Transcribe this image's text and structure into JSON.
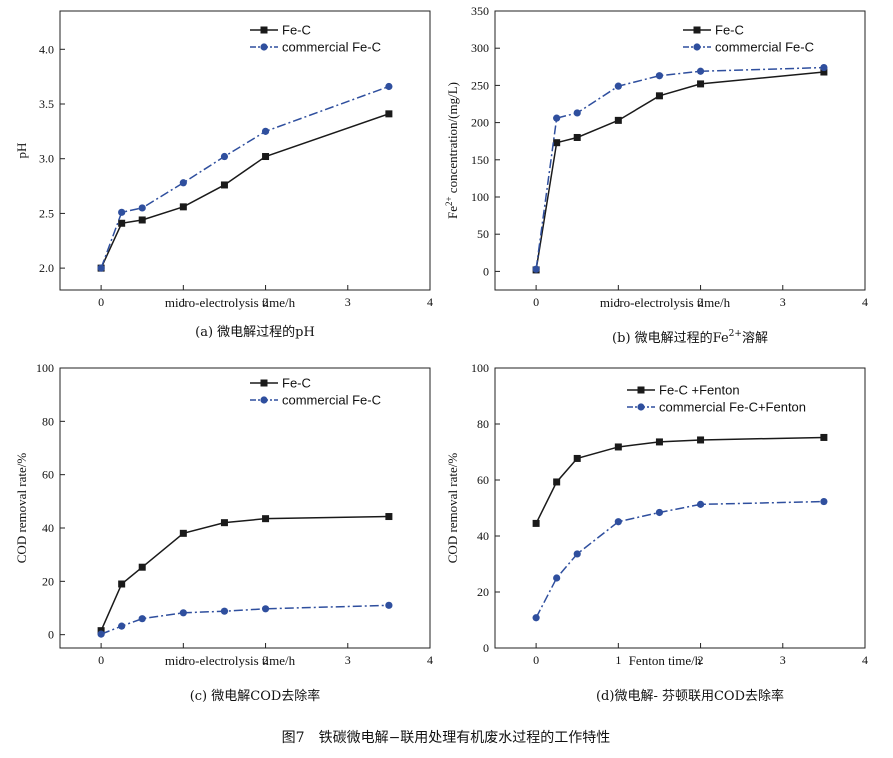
{
  "figure_caption": "图7　铁碳微电解−联用处理有机废水过程的工作特性",
  "colors": {
    "fe_c": "#1a1a1a",
    "commercial": "#2f4f9e"
  },
  "chart_data": [
    {
      "type": "line",
      "id": "a",
      "caption": "(a) 微电解过程的pH",
      "xlabel": "micro-electrolysis time/h",
      "ylabel": "pH",
      "xlim": [
        -0.5,
        4
      ],
      "ylim": [
        1.8,
        4.35
      ],
      "xticks": [
        0,
        1,
        2,
        3,
        4
      ],
      "yticks": [
        2.0,
        2.5,
        3.0,
        3.5,
        4.0
      ],
      "ytick_labels": [
        "2.0",
        "2.5",
        "3.0",
        "3.5",
        "4.0"
      ],
      "x": [
        0,
        0.25,
        0.5,
        1,
        1.5,
        2,
        3.5
      ],
      "series": [
        {
          "name": "Fe-C",
          "marker": "square",
          "dash": "solid",
          "values": [
            2.0,
            2.41,
            2.44,
            2.56,
            2.76,
            3.02,
            3.41
          ]
        },
        {
          "name": "commercial Fe-C",
          "marker": "circle",
          "dash": "dashdot",
          "values": [
            2.0,
            2.51,
            2.55,
            2.78,
            3.02,
            3.25,
            3.66
          ]
        }
      ]
    },
    {
      "type": "line",
      "id": "b",
      "caption_prefix": "(b) 微电解过程的Fe",
      "caption_sup": "2+",
      "caption_suffix": "溶解",
      "xlabel": "micro-electrolysis time/h",
      "ylabel_prefix": "Fe",
      "ylabel_sup": "2+",
      "ylabel_suffix": " concentration/(mg/L)",
      "xlim": [
        -0.5,
        4
      ],
      "ylim": [
        -25,
        350
      ],
      "xticks": [
        0,
        1,
        2,
        3,
        4
      ],
      "yticks": [
        0,
        50,
        100,
        150,
        200,
        250,
        300,
        350
      ],
      "ytick_labels": [
        "0",
        "50",
        "100",
        "150",
        "200",
        "250",
        "300",
        "350"
      ],
      "x": [
        0,
        0.25,
        0.5,
        1,
        1.5,
        2,
        3.5
      ],
      "series": [
        {
          "name": "Fe-C",
          "marker": "square",
          "dash": "solid",
          "values": [
            2,
            173,
            180,
            203,
            236,
            252,
            268
          ]
        },
        {
          "name": "commercial Fe-C",
          "marker": "circle",
          "dash": "dashdot",
          "values": [
            3,
            206,
            213,
            249,
            263,
            269,
            274
          ]
        }
      ]
    },
    {
      "type": "line",
      "id": "c",
      "caption": "(c) 微电解COD去除率",
      "xlabel": "micro-electrolysis time/h",
      "ylabel": "COD removal rate/%",
      "xlim": [
        -0.5,
        4
      ],
      "ylim": [
        -5,
        100
      ],
      "xticks": [
        0,
        1,
        2,
        3,
        4
      ],
      "yticks": [
        0,
        20,
        40,
        60,
        80,
        100
      ],
      "ytick_labels": [
        "0",
        "20",
        "40",
        "60",
        "80",
        "100"
      ],
      "x": [
        0,
        0.25,
        0.5,
        1,
        1.5,
        2,
        3.5
      ],
      "series": [
        {
          "name": "Fe-C",
          "marker": "square",
          "dash": "solid",
          "values": [
            1.5,
            19,
            25.3,
            38,
            42,
            43.5,
            44.3
          ]
        },
        {
          "name": "commercial Fe-C",
          "marker": "circle",
          "dash": "dashdot",
          "values": [
            0.2,
            3.2,
            6,
            8.2,
            8.8,
            9.7,
            11
          ]
        }
      ]
    },
    {
      "type": "line",
      "id": "d",
      "caption": "(d)微电解- 芬顿联用COD去除率",
      "xlabel": "Fenton time/h",
      "ylabel": "COD removal rate/%",
      "xlim": [
        -0.5,
        4
      ],
      "ylim": [
        0,
        100
      ],
      "xticks": [
        0,
        1,
        2,
        3,
        4
      ],
      "yticks": [
        0,
        20,
        40,
        60,
        80,
        100
      ],
      "ytick_labels": [
        "0",
        "20",
        "40",
        "60",
        "80",
        "100"
      ],
      "x": [
        0,
        0.25,
        0.5,
        1,
        1.5,
        2,
        3.5
      ],
      "series": [
        {
          "name": "Fe-C +Fenton",
          "marker": "square",
          "dash": "solid",
          "values": [
            44.5,
            59.3,
            67.7,
            71.8,
            73.6,
            74.3,
            75.2
          ]
        },
        {
          "name": "commercial Fe-C+Fenton",
          "marker": "circle",
          "dash": "dashdot",
          "values": [
            10.8,
            25,
            33.6,
            45.1,
            48.4,
            51.3,
            52.3
          ]
        }
      ]
    }
  ]
}
